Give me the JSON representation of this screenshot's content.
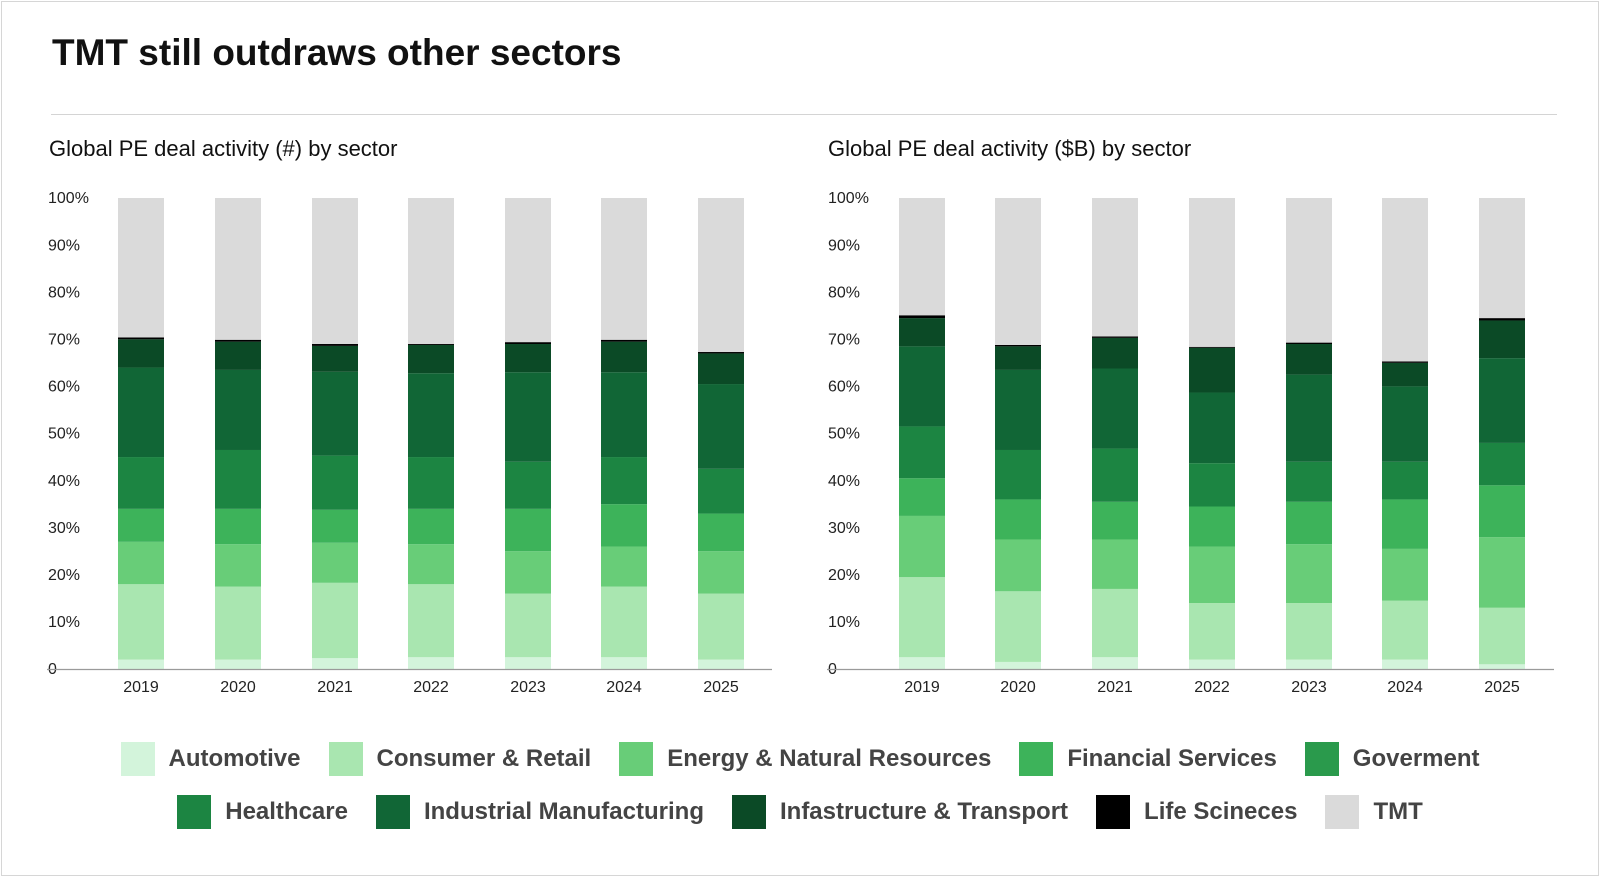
{
  "title": "TMT still outdraws other sectors",
  "colors": {
    "Automotive": "#d3f4db",
    "Consumer & Retail": "#a9e6b0",
    "Energy & Natural Resources": "#68cd78",
    "Financial Services": "#3db35a",
    "Goverment": "#2a9a4c",
    "Healthcare": "#1c8542",
    "Industrial Manufacturing": "#116636",
    "Infastructure & Transport": "#0b4a26",
    "Life Scineces": "#000000",
    "TMT": "#dadada"
  },
  "legend": {
    "row1": [
      "Automotive",
      "Consumer & Retail",
      "Energy & Natural Resources",
      "Financial Services",
      "Goverment"
    ],
    "row2": [
      "Healthcare",
      "Industrial Manufacturing",
      "Infastructure & Transport",
      "Life Scineces",
      "TMT"
    ]
  },
  "chart_data": [
    {
      "type": "bar",
      "stacked": true,
      "title": "Global PE deal activity (#) by sector",
      "categories": [
        "2019",
        "2020",
        "2021",
        "2022",
        "2023",
        "2024",
        "2025"
      ],
      "ylim": [
        0,
        100
      ],
      "yticks": [
        "0",
        "10%",
        "20%",
        "30%",
        "40%",
        "50%",
        "60%",
        "70%",
        "80%",
        "90%",
        "100%"
      ],
      "series": [
        {
          "name": "Automotive",
          "values": [
            2,
            2,
            2.3,
            2.5,
            2.5,
            2.5,
            2
          ]
        },
        {
          "name": "Consumer & Retail",
          "values": [
            16,
            15.5,
            16,
            15.5,
            13.5,
            15,
            14
          ]
        },
        {
          "name": "Energy & Natural Resources",
          "values": [
            9,
            9,
            8.5,
            8.5,
            9,
            8.5,
            9
          ]
        },
        {
          "name": "Financial Services",
          "values": [
            7,
            7.5,
            7,
            7.5,
            9,
            9,
            8
          ]
        },
        {
          "name": "Goverment",
          "values": [
            0,
            0,
            0,
            0,
            0,
            0,
            0
          ]
        },
        {
          "name": "Healthcare",
          "values": [
            11,
            12.5,
            11.5,
            11,
            10,
            10,
            9.5
          ]
        },
        {
          "name": "Industrial Manufacturing",
          "values": [
            19,
            17,
            17.8,
            17.8,
            19,
            18,
            18
          ]
        },
        {
          "name": "Infastructure & Transport",
          "values": [
            6,
            6,
            5.5,
            6,
            6,
            6.5,
            6.5
          ]
        },
        {
          "name": "Life Scineces",
          "values": [
            0.4,
            0.4,
            0.4,
            0.2,
            0.4,
            0.4,
            0.3
          ]
        },
        {
          "name": "TMT",
          "values": [
            29.6,
            30.1,
            31.0,
            31.0,
            30.6,
            30.1,
            32.7
          ]
        }
      ]
    },
    {
      "type": "bar",
      "stacked": true,
      "title": "Global PE deal activity ($B) by sector",
      "categories": [
        "2019",
        "2020",
        "2021",
        "2022",
        "2023",
        "2024",
        "2025"
      ],
      "ylim": [
        0,
        100
      ],
      "yticks": [
        "0",
        "10%",
        "20%",
        "30%",
        "40%",
        "50%",
        "60%",
        "70%",
        "80%",
        "90%",
        "100%"
      ],
      "series": [
        {
          "name": "Automotive",
          "values": [
            2.5,
            1.5,
            2.5,
            2,
            2,
            2,
            1
          ]
        },
        {
          "name": "Consumer & Retail",
          "values": [
            17,
            15,
            14.5,
            12,
            12,
            12.5,
            12
          ]
        },
        {
          "name": "Energy & Natural Resources",
          "values": [
            13,
            11,
            10.5,
            12,
            12.5,
            11,
            15
          ]
        },
        {
          "name": "Financial Services",
          "values": [
            8,
            8.5,
            8,
            8.5,
            9,
            10.5,
            11
          ]
        },
        {
          "name": "Goverment",
          "values": [
            0,
            0,
            0,
            0,
            0,
            0,
            0
          ]
        },
        {
          "name": "Healthcare",
          "values": [
            11,
            10.5,
            11.3,
            9.2,
            8.5,
            8,
            9
          ]
        },
        {
          "name": "Industrial Manufacturing",
          "values": [
            17,
            17,
            17,
            15,
            18.5,
            16,
            18
          ]
        },
        {
          "name": "Infastructure & Transport",
          "values": [
            6,
            5,
            6.5,
            9.5,
            6.5,
            5,
            8
          ]
        },
        {
          "name": "Life Scineces",
          "values": [
            0.6,
            0.3,
            0.3,
            0.2,
            0.3,
            0.3,
            0.5
          ]
        },
        {
          "name": "TMT",
          "values": [
            24.9,
            31.2,
            29.4,
            31.6,
            30.7,
            34.7,
            25.5
          ]
        }
      ]
    }
  ]
}
